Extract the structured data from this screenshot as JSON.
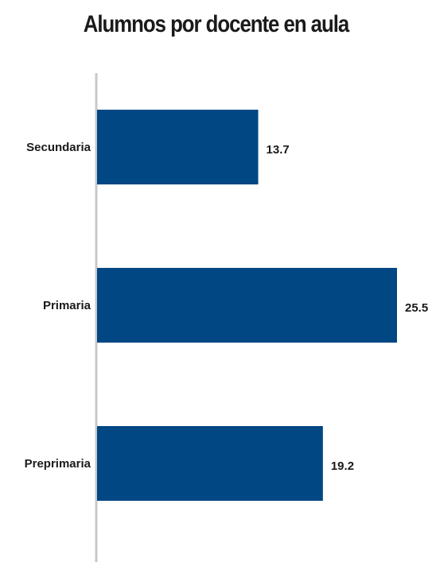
{
  "chart_data": {
    "type": "bar",
    "orientation": "horizontal",
    "title": "Alumnos por docente en aula",
    "categories": [
      "Secundaria",
      "Primaria",
      "Preprimaria"
    ],
    "values": [
      13.7,
      25.5,
      19.2
    ],
    "xlabel": "",
    "ylabel": "",
    "xlim": [
      0,
      25.5
    ],
    "grid": false,
    "legend": "none",
    "bar_color": "#004784",
    "axis_color": "#c8c8c8"
  }
}
